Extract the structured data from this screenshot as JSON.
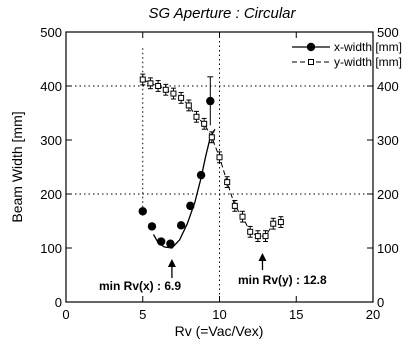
{
  "chart_data": {
    "type": "line",
    "title": "SG Aperture : Circular",
    "xlabel": "Rv (=Vac/Vex)",
    "ylabel": "Beam Width [mm]",
    "xlim": [
      0,
      20
    ],
    "ylim": [
      0,
      500
    ],
    "x_ticks": [
      0,
      5,
      10,
      15,
      20
    ],
    "y_ticks": [
      0,
      100,
      200,
      300,
      400,
      500
    ],
    "grid": "dotted at x=10 and y=200, 400",
    "legend_position": "top-right",
    "series": [
      {
        "name": "x-width [mm]",
        "marker": "filled-circle",
        "line": "solid",
        "x": [
          5.0,
          5.6,
          6.2,
          6.8,
          7.5,
          8.1,
          8.8,
          9.4
        ],
        "y": [
          168,
          140,
          112,
          108,
          142,
          178,
          235,
          372
        ],
        "yerr": [
          0,
          0,
          0,
          0,
          0,
          0,
          0,
          45
        ],
        "fit_curve": {
          "x": [
            5.7,
            6.0,
            6.4,
            6.9,
            7.4,
            7.9,
            8.4,
            8.8,
            9.1,
            9.4,
            9.7
          ],
          "y": [
            125,
            110,
            102,
            100,
            115,
            145,
            185,
            230,
            270,
            305,
            320
          ]
        }
      },
      {
        "name": "y-width [mm]",
        "marker": "open-square",
        "line": "dashed",
        "x": [
          5.0,
          5.5,
          6.0,
          6.5,
          7.0,
          7.5,
          8.0,
          8.5,
          9.0,
          9.5,
          10.0,
          10.5,
          11.0,
          11.5,
          12.0,
          12.5,
          13.0,
          13.5,
          14.0
        ],
        "y": [
          412,
          405,
          400,
          393,
          386,
          378,
          364,
          343,
          330,
          305,
          268,
          222,
          178,
          158,
          130,
          122,
          122,
          145,
          148
        ],
        "yerr": [
          10,
          10,
          10,
          10,
          10,
          10,
          10,
          10,
          10,
          10,
          10,
          10,
          10,
          10,
          10,
          10,
          10,
          10,
          10
        ]
      }
    ],
    "annotations": [
      {
        "text": "min Rv(x) : 6.9",
        "arrow_x": 6.9
      },
      {
        "text": "min Rv(y) : 12.8",
        "arrow_x": 12.8
      }
    ]
  }
}
